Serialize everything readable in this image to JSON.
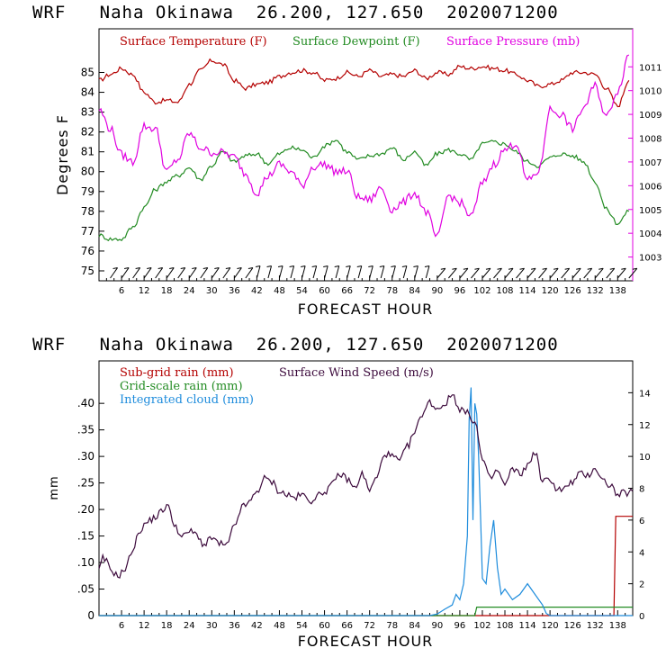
{
  "chart_data": [
    {
      "type": "line",
      "title": "WRF   Naha Okinawa  26.200, 127.650  2020071200",
      "title_parts": {
        "model": "WRF",
        "location": "Naha Okinawa",
        "coords": "26.200, 127.650",
        "init": "2020071200"
      },
      "xlabel": "FORECAST HOUR",
      "ylabel": "Degrees F",
      "xlim": [
        0,
        142
      ],
      "ylim": [
        74.5,
        87.2
      ],
      "y2lim": [
        1002,
        1012.6
      ],
      "xticks": [
        6,
        12,
        18,
        24,
        30,
        36,
        42,
        48,
        54,
        60,
        66,
        72,
        78,
        84,
        90,
        96,
        102,
        108,
        114,
        120,
        126,
        132,
        138
      ],
      "yticks": [
        75,
        76,
        77,
        78,
        79,
        80,
        81,
        82,
        83,
        84,
        85
      ],
      "y2ticks": [
        1003,
        1004,
        1005,
        1006,
        1007,
        1008,
        1009,
        1010,
        1011
      ],
      "colors": {
        "temperature": "#b40000",
        "dewpoint": "#228b22",
        "pressure": "#e000e0",
        "axis": "#000000"
      },
      "series": [
        {
          "name": "Surface Temperature (F)",
          "axis": "left",
          "x": [
            0,
            3,
            6,
            9,
            12,
            15,
            18,
            21,
            24,
            27,
            30,
            33,
            36,
            39,
            42,
            45,
            48,
            51,
            54,
            57,
            60,
            63,
            66,
            69,
            72,
            75,
            78,
            81,
            84,
            87,
            90,
            93,
            96,
            99,
            102,
            105,
            108,
            111,
            114,
            117,
            120,
            123,
            126,
            129,
            132,
            135,
            138,
            141
          ],
          "values": [
            84.6,
            84.9,
            85.2,
            84.9,
            84.0,
            83.5,
            83.6,
            83.5,
            84.4,
            85.1,
            85.6,
            85.4,
            84.6,
            84.2,
            84.4,
            84.5,
            84.8,
            85.0,
            85.1,
            85.0,
            84.6,
            84.7,
            85.0,
            84.8,
            85.1,
            84.8,
            84.9,
            84.8,
            85.1,
            84.7,
            85.0,
            84.9,
            85.3,
            85.2,
            85.3,
            85.2,
            85.1,
            84.9,
            84.6,
            84.3,
            84.4,
            84.6,
            85.0,
            85.0,
            84.9,
            84.2,
            83.3,
            84.6
          ]
        },
        {
          "name": "Surface Dewpoint (F)",
          "axis": "left",
          "x": [
            0,
            3,
            6,
            9,
            12,
            15,
            18,
            21,
            24,
            27,
            30,
            33,
            36,
            39,
            42,
            45,
            48,
            51,
            54,
            57,
            60,
            63,
            66,
            69,
            72,
            75,
            78,
            81,
            84,
            87,
            90,
            93,
            96,
            99,
            102,
            105,
            108,
            111,
            114,
            117,
            120,
            123,
            126,
            129,
            132,
            135,
            138,
            141
          ],
          "values": [
            76.8,
            76.6,
            76.6,
            77.2,
            78.2,
            79.1,
            79.5,
            79.8,
            80.2,
            79.6,
            80.3,
            81.0,
            80.5,
            80.8,
            80.9,
            80.4,
            80.9,
            81.2,
            81.1,
            80.7,
            81.3,
            81.6,
            81.0,
            80.6,
            80.8,
            80.9,
            81.2,
            80.6,
            81.0,
            80.3,
            80.9,
            81.1,
            80.9,
            80.6,
            81.4,
            81.5,
            81.4,
            81.0,
            80.5,
            80.3,
            80.7,
            80.9,
            80.8,
            80.5,
            79.5,
            78.1,
            77.4,
            78.0
          ]
        },
        {
          "name": "Surface Pressure (mb)",
          "axis": "right",
          "x": [
            0,
            3,
            6,
            9,
            12,
            15,
            18,
            21,
            24,
            27,
            30,
            33,
            36,
            39,
            42,
            45,
            48,
            51,
            54,
            57,
            60,
            63,
            66,
            69,
            72,
            75,
            78,
            81,
            84,
            87,
            90,
            93,
            96,
            99,
            102,
            105,
            108,
            111,
            114,
            117,
            120,
            123,
            126,
            129,
            132,
            135,
            138,
            141
          ],
          "values": [
            1009.2,
            1008.4,
            1007.3,
            1007.0,
            1008.5,
            1008.4,
            1006.6,
            1007.1,
            1008.2,
            1007.6,
            1007.4,
            1007.4,
            1007.2,
            1006.5,
            1005.7,
            1006.4,
            1006.9,
            1006.6,
            1006.0,
            1006.8,
            1006.9,
            1006.6,
            1006.6,
            1005.5,
            1005.4,
            1005.9,
            1005.0,
            1005.3,
            1005.7,
            1004.9,
            1003.8,
            1005.6,
            1005.3,
            1004.7,
            1006.1,
            1006.9,
            1007.5,
            1007.8,
            1006.2,
            1006.6,
            1009.2,
            1009.0,
            1008.4,
            1009.3,
            1010.2,
            1008.9,
            1010.0,
            1011.5
          ]
        }
      ],
      "wind_barbs": "surface wind barbs along bottom edge",
      "legend": [
        "Surface Temperature (F)",
        "Surface Dewpoint (F)",
        "Surface Pressure (mb)"
      ]
    },
    {
      "type": "line",
      "title": "WRF   Naha Okinawa  26.200, 127.650  2020071200",
      "title_parts": {
        "model": "WRF",
        "location": "Naha Okinawa",
        "coords": "26.200, 127.650",
        "init": "2020071200"
      },
      "xlabel": "FORECAST HOUR",
      "ylabel": "mm",
      "xlim": [
        0,
        142
      ],
      "ylim": [
        0,
        0.48
      ],
      "y2lim": [
        0,
        16
      ],
      "xticks": [
        6,
        12,
        18,
        24,
        30,
        36,
        42,
        48,
        54,
        60,
        66,
        72,
        78,
        84,
        90,
        96,
        102,
        108,
        114,
        120,
        126,
        132,
        138
      ],
      "ytick_labels": [
        "0",
        ".05",
        ".10",
        ".15",
        ".20",
        ".25",
        ".30",
        ".35",
        ".40"
      ],
      "yticks": [
        0,
        0.05,
        0.1,
        0.15,
        0.2,
        0.25,
        0.3,
        0.35,
        0.4
      ],
      "y2ticks": [
        0,
        2,
        4,
        6,
        8,
        10,
        12,
        14
      ],
      "colors": {
        "subgrid": "#b40000",
        "gridscale": "#228b22",
        "cloud": "#1e8cdc",
        "wind": "#3c0a3c",
        "axis": "#000000"
      },
      "series": [
        {
          "name": "Sub-grid rain (mm)",
          "axis": "left",
          "x": [
            0,
            137,
            137.5,
            142
          ],
          "values": [
            0,
            0,
            0.187,
            0.187
          ]
        },
        {
          "name": "Grid-scale rain (mm)",
          "axis": "left",
          "x": [
            0,
            100,
            100.5,
            142
          ],
          "values": [
            0,
            0,
            0.016,
            0.016
          ]
        },
        {
          "name": "Integrated cloud (mm)",
          "axis": "left",
          "x": [
            0,
            88,
            90,
            92,
            94,
            95,
            96,
            97,
            98,
            98.5,
            99,
            99.5,
            100,
            100.5,
            101,
            101.5,
            102,
            103,
            104,
            105,
            106,
            107,
            108,
            110,
            112,
            114,
            116,
            118,
            119,
            120,
            142
          ],
          "values": [
            0,
            0,
            0.003,
            0.012,
            0.02,
            0.04,
            0.03,
            0.06,
            0.15,
            0.37,
            0.43,
            0.18,
            0.4,
            0.38,
            0.3,
            0.19,
            0.07,
            0.06,
            0.13,
            0.18,
            0.09,
            0.04,
            0.05,
            0.03,
            0.04,
            0.06,
            0.04,
            0.02,
            0.004,
            0,
            0
          ]
        },
        {
          "name": "Surface Wind Speed (m/s)",
          "axis": "right",
          "x": [
            0,
            1,
            2,
            3,
            5,
            7,
            9,
            11,
            13,
            15,
            17,
            18,
            20,
            22,
            24,
            26,
            28,
            30,
            32,
            34,
            36,
            38,
            40,
            42,
            44,
            46,
            48,
            50,
            52,
            54,
            56,
            58,
            60,
            62,
            64,
            66,
            68,
            70,
            72,
            74,
            76,
            78,
            80,
            82,
            84,
            86,
            88,
            90,
            92,
            94,
            96,
            98,
            100,
            102,
            104,
            106,
            108,
            110,
            112,
            114,
            116,
            118,
            120,
            122,
            124,
            126,
            128,
            130,
            132,
            134,
            136,
            138,
            140,
            142
          ],
          "values": [
            2.8,
            3.6,
            3.4,
            2.9,
            2.5,
            2.9,
            4.2,
            5.4,
            5.9,
            6.2,
            6.6,
            7.0,
            5.8,
            4.9,
            5.3,
            5.1,
            4.4,
            4.9,
            4.5,
            4.4,
            5.6,
            6.8,
            7.1,
            7.8,
            8.6,
            8.4,
            7.8,
            7.6,
            7.4,
            7.6,
            7.2,
            7.5,
            7.8,
            8.2,
            8.9,
            8.6,
            8.0,
            8.9,
            7.9,
            8.7,
            10.2,
            10.0,
            9.7,
            10.6,
            11.5,
            12.7,
            13.4,
            13.0,
            13.3,
            13.9,
            13.0,
            12.7,
            12.2,
            9.8,
            8.6,
            9.1,
            8.2,
            9.2,
            8.9,
            9.4,
            10.3,
            8.4,
            8.6,
            7.9,
            8.0,
            8.4,
            8.9,
            8.8,
            9.3,
            8.5,
            8.2,
            7.6,
            7.7,
            7.8
          ]
        }
      ],
      "legend": [
        "Sub-grid rain (mm)",
        "Surface Wind Speed (m/s)",
        "Grid-scale rain (mm)",
        "Integrated cloud (mm)"
      ]
    }
  ]
}
